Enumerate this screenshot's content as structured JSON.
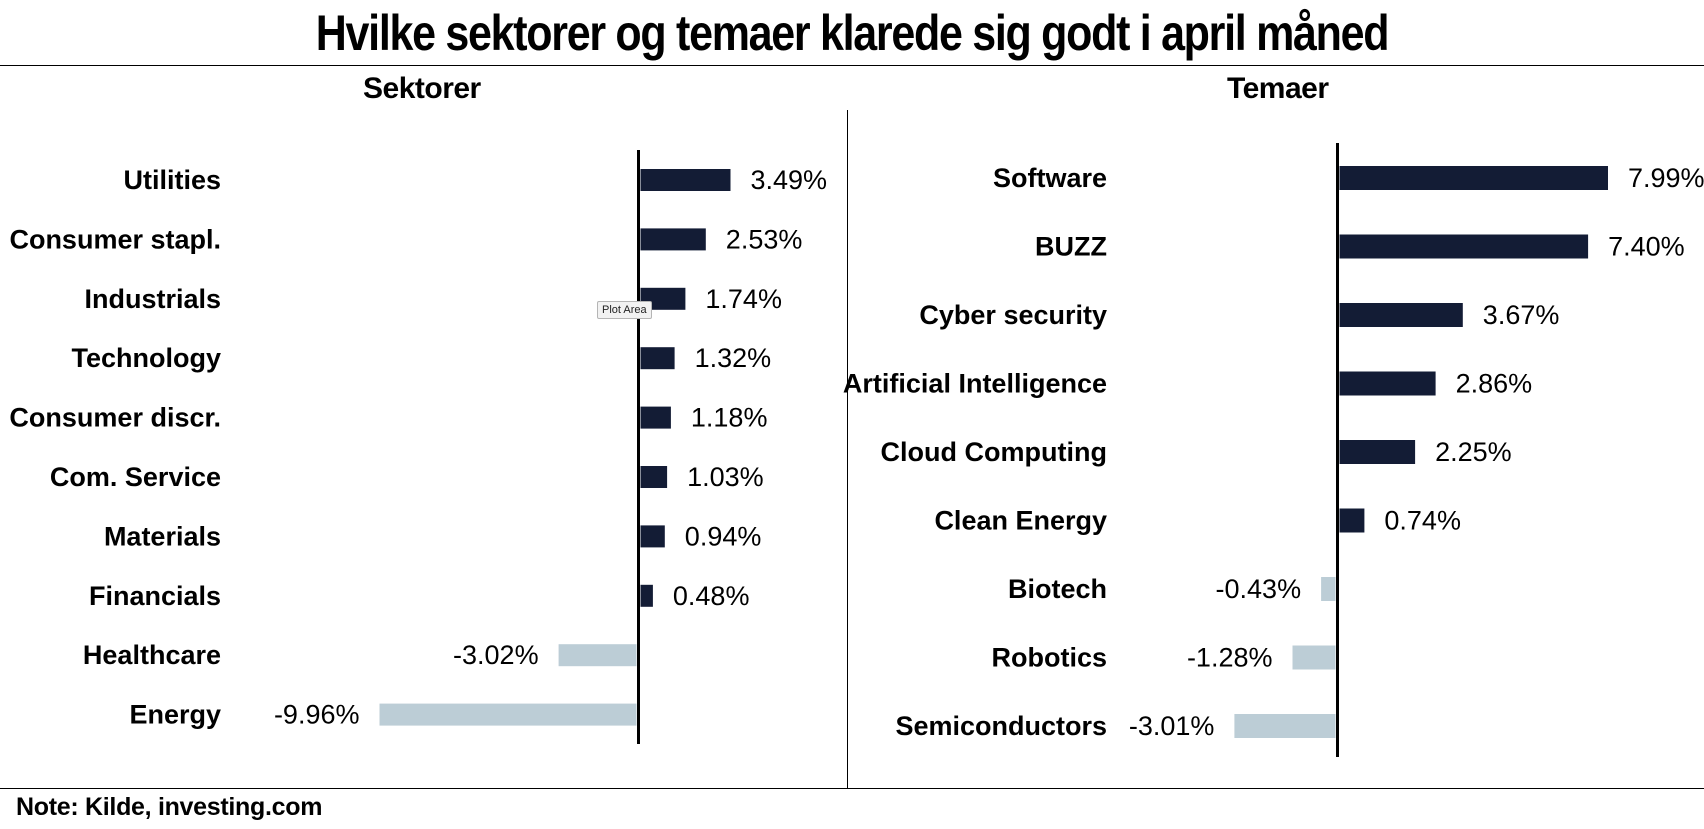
{
  "title": "Hvilke sektorer og temaer klarede sig godt i april måned",
  "note": "Note: Kilde, investing.com",
  "tooltip": "Plot Area",
  "colors": {
    "positive": "#131c35",
    "negative": "#bccdd6",
    "axis": "#000000"
  },
  "chart_data": [
    {
      "type": "bar",
      "orientation": "horizontal",
      "title": "Sektorer",
      "categories": [
        "Utilities",
        "Consumer stapl.",
        "Industrials",
        "Technology",
        "Consumer discr.",
        "Com. Service",
        "Materials",
        "Financials",
        "Healthcare",
        "Energy"
      ],
      "values": [
        3.49,
        2.53,
        1.74,
        1.32,
        1.18,
        1.03,
        0.94,
        0.48,
        -3.02,
        -9.96
      ],
      "labels": [
        "3.49%",
        "2.53%",
        "1.74%",
        "1.32%",
        "1.18%",
        "1.03%",
        "0.94%",
        "0.48%",
        "-3.02%",
        "-9.96%"
      ],
      "unit": "%",
      "grid": false
    },
    {
      "type": "bar",
      "orientation": "horizontal",
      "title": "Temaer",
      "categories": [
        "Software",
        "BUZZ",
        "Cyber security",
        "Artificial Intelligence",
        "Cloud Computing",
        "Clean Energy",
        "Biotech",
        "Robotics",
        "Semiconductors"
      ],
      "values": [
        7.99,
        7.4,
        3.67,
        2.86,
        2.25,
        0.74,
        -0.43,
        -1.28,
        -3.01
      ],
      "labels": [
        "7.99%",
        "7.40%",
        "3.67%",
        "2.86%",
        "2.25%",
        "0.74%",
        "-0.43%",
        "-1.28%",
        "-3.01%"
      ],
      "unit": "%",
      "grid": false
    }
  ]
}
